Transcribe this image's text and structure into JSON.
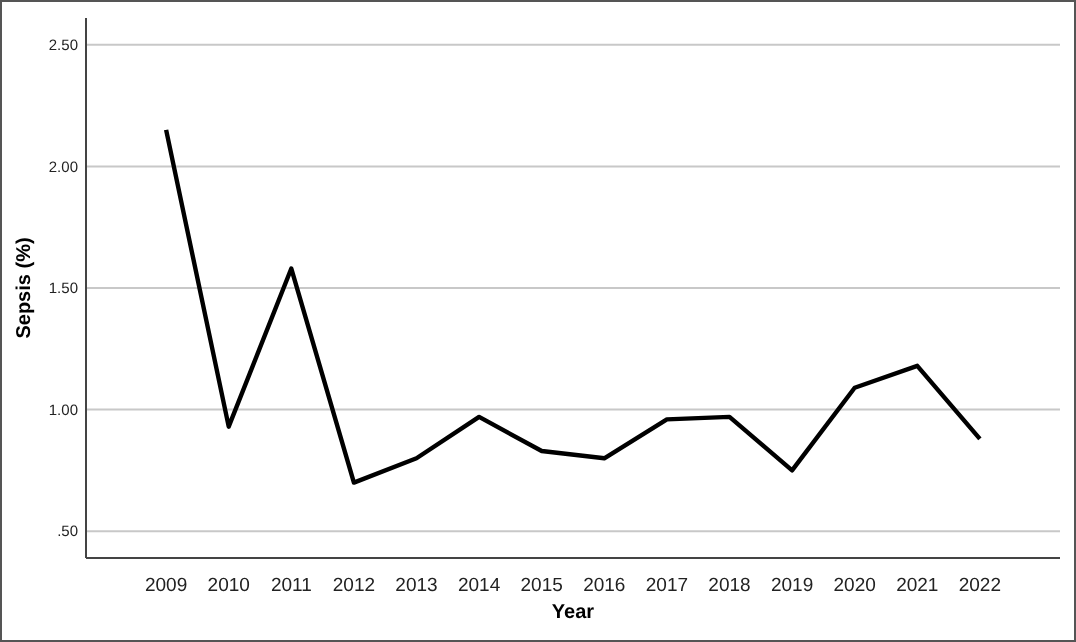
{
  "chart_data": {
    "type": "line",
    "xlabel": "Year",
    "ylabel": "Sepsis (%)",
    "categories": [
      "2009",
      "2010",
      "2011",
      "2012",
      "2013",
      "2014",
      "2015",
      "2016",
      "2017",
      "2018",
      "2019",
      "2020",
      "2021",
      "2022"
    ],
    "series": [
      {
        "color": "#000000",
        "values": [
          2.15,
          0.93,
          1.58,
          0.7,
          0.8,
          0.97,
          0.83,
          0.8,
          0.96,
          0.97,
          0.75,
          1.09,
          1.18,
          0.88
        ]
      }
    ],
    "ylim": [
      0.39,
      2.61
    ],
    "yticks": [
      {
        "value": 0.5,
        "label": ".50"
      },
      {
        "value": 1,
        "label": "1.00"
      },
      {
        "value": 1.5,
        "label": "1.50"
      },
      {
        "value": 2,
        "label": "2.00"
      },
      {
        "value": 2.5,
        "label": "2.50"
      }
    ],
    "grid": "y",
    "marker": "none",
    "line_style": "solid"
  }
}
